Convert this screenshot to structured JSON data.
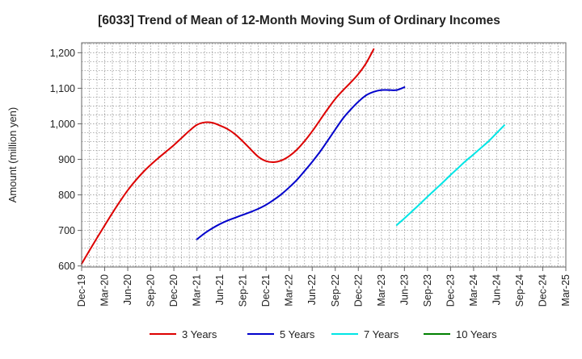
{
  "chart_data": {
    "type": "line",
    "title": "[6033]  Trend of Mean of 12-Month Moving Sum of Ordinary Incomes",
    "xlabel": "",
    "ylabel": "Amount (million yen)",
    "ylim": [
      597,
      1228
    ],
    "y_ticks": [
      600,
      700,
      800,
      900,
      1000,
      1100,
      1200
    ],
    "y_tick_labels": [
      "600",
      "700",
      "800",
      "900",
      "1,000",
      "1,100",
      "1,200"
    ],
    "x_ticks": [
      "Dec-19",
      "Mar-20",
      "Jun-20",
      "Sep-20",
      "Dec-20",
      "Mar-21",
      "Jun-21",
      "Sep-21",
      "Dec-21",
      "Mar-22",
      "Jun-22",
      "Sep-22",
      "Dec-22",
      "Mar-23",
      "Jun-23",
      "Sep-23",
      "Dec-23",
      "Mar-24",
      "Jun-24",
      "Sep-24",
      "Dec-24",
      "Mar-25"
    ],
    "grid": true,
    "legend_position": "bottom",
    "series": [
      {
        "name": "3 Years",
        "color": "#dd0000",
        "start_index": 0,
        "values": [
          606,
          643,
          679,
          714,
          749,
          782,
          813,
          840,
          864,
          885,
          904,
          922,
          940,
          960,
          980,
          997,
          1004,
          1003,
          995,
          985,
          970,
          950,
          928,
          907,
          895,
          892,
          897,
          909,
          927,
          951,
          979,
          1010,
          1041,
          1070,
          1094,
          1116,
          1140,
          1170,
          1210
        ]
      },
      {
        "name": "5 Years",
        "color": "#0000cc",
        "start_index": 15,
        "values": [
          675,
          692,
          706,
          718,
          728,
          736,
          744,
          752,
          761,
          772,
          786,
          802,
          821,
          842,
          867,
          893,
          921,
          952,
          984,
          1015,
          1040,
          1062,
          1080,
          1090,
          1095,
          1095,
          1095,
          1103
        ]
      },
      {
        "name": "7 Years",
        "color": "#00e5e5",
        "start_index": 41,
        "values": [
          715,
          734,
          754,
          774,
          795,
          815,
          835,
          856,
          876,
          896,
          914,
          933,
          952,
          974,
          996
        ]
      },
      {
        "name": "10 Years",
        "color": "#008000",
        "start_index": 0,
        "values": []
      }
    ]
  }
}
